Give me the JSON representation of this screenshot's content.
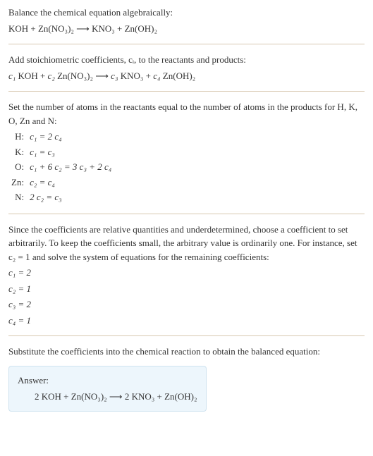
{
  "intro": {
    "line1": "Balance the chemical equation algebraically:",
    "eq": "KOH + Zn(NO₃)₂  ⟶  KNO₃ + Zn(OH)₂"
  },
  "coeffs": {
    "text": "Add stoichiometric coefficients, cᵢ, to the reactants and products:",
    "eq_parts": {
      "c1": "c₁",
      "r1": " KOH + ",
      "c2": "c₂",
      "r2": " Zn(NO₃)₂  ⟶  ",
      "c3": "c₃",
      "r3": " KNO₃ + ",
      "c4": "c₄",
      "r4": " Zn(OH)₂"
    }
  },
  "atoms": {
    "text": "Set the number of atoms in the reactants equal to the number of atoms in the products for H, K, O, Zn and N:",
    "rows": [
      {
        "el": "H:",
        "expr": "c₁ = 2 c₄"
      },
      {
        "el": "K:",
        "expr": "c₁ = c₃"
      },
      {
        "el": "O:",
        "expr": "c₁ + 6 c₂ = 3 c₃ + 2 c₄"
      },
      {
        "el": "Zn:",
        "expr": "c₂ = c₄"
      },
      {
        "el": "N:",
        "expr": "2 c₂ = c₃"
      }
    ]
  },
  "solve": {
    "text": "Since the coefficients are relative quantities and underdetermined, choose a coefficient to set arbitrarily. To keep the coefficients small, the arbitrary value is ordinarily one. For instance, set c₂ = 1 and solve the system of equations for the remaining coefficients:",
    "lines": [
      "c₁ = 2",
      "c₂ = 1",
      "c₃ = 2",
      "c₄ = 1"
    ]
  },
  "subst": {
    "text": "Substitute the coefficients into the chemical reaction to obtain the balanced equation:"
  },
  "answer": {
    "label": "Answer:",
    "eq": "2 KOH + Zn(NO₃)₂  ⟶  2 KNO₃ + Zn(OH)₂"
  }
}
